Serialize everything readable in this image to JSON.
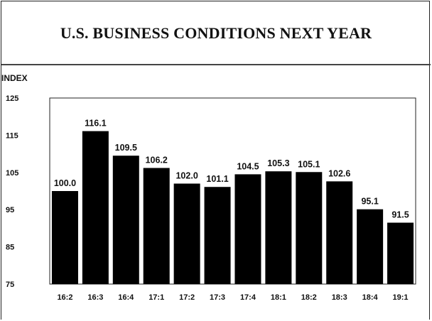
{
  "chart_data": {
    "type": "bar",
    "title": "U.S. BUSINESS CONDITIONS NEXT YEAR",
    "ylabel": "INDEX",
    "xlabel": "",
    "categories": [
      "16:2",
      "16:3",
      "16:4",
      "17:1",
      "17:2",
      "17:3",
      "17:4",
      "18:1",
      "18:2",
      "18:3",
      "18:4",
      "19:1"
    ],
    "values": [
      100.0,
      116.1,
      109.5,
      106.2,
      102.0,
      101.1,
      104.5,
      105.3,
      105.1,
      102.6,
      95.1,
      91.5
    ],
    "value_labels": [
      "100.0",
      "116.1",
      "109.5",
      "106.2",
      "102.0",
      "101.1",
      "104.5",
      "105.3",
      "105.1",
      "102.6",
      "95.1",
      "91.5"
    ],
    "ylim": [
      75,
      125
    ],
    "yticks": [
      125,
      115,
      105,
      95,
      85,
      75
    ],
    "bar_color": "#000000",
    "grid": false,
    "legend": "none"
  }
}
